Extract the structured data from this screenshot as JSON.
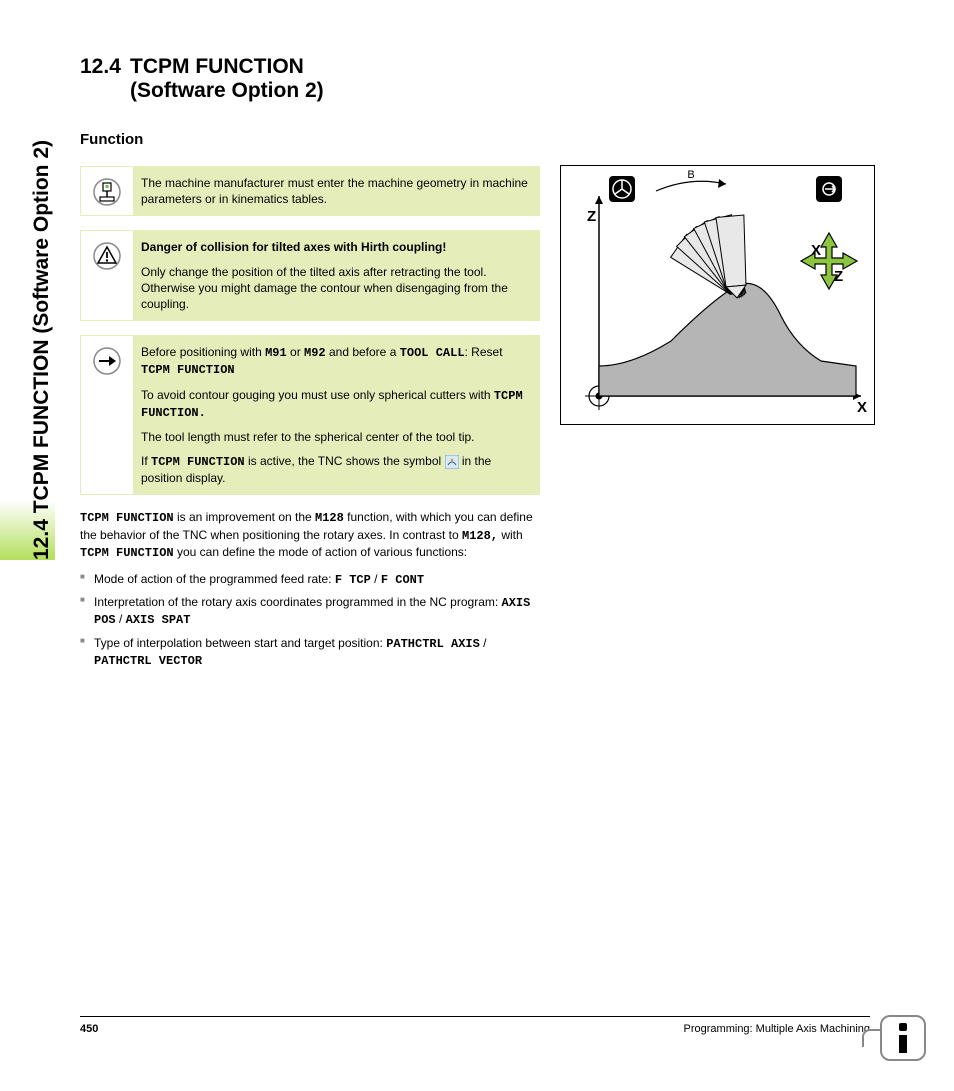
{
  "sidebar_label": "12.4 TCPM FUNCTION (Software Option 2)",
  "section": {
    "number": "12.4",
    "title_line1": "TCPM FUNCTION",
    "title_line2": "(Software Option 2)"
  },
  "subsection_title": "Function",
  "callouts": [
    {
      "icon": "machine",
      "heading": null,
      "paragraphs": [
        {
          "runs": [
            {
              "t": "The machine manufacturer must enter the machine geometry in machine parameters or in kinematics tables."
            }
          ]
        }
      ]
    },
    {
      "icon": "warning",
      "heading": "Danger of collision for tilted axes with Hirth coupling!",
      "paragraphs": [
        {
          "runs": [
            {
              "t": "Only change the position of the tilted axis after retracting the tool. Otherwise you might damage the contour when disengaging from the coupling."
            }
          ]
        }
      ]
    },
    {
      "icon": "arrow",
      "heading": null,
      "paragraphs": [
        {
          "runs": [
            {
              "t": "Before positioning with "
            },
            {
              "t": "M91",
              "mono": true
            },
            {
              "t": " or "
            },
            {
              "t": "M92",
              "mono": true
            },
            {
              "t": " and before a "
            },
            {
              "t": "TOOL CALL",
              "mono": true
            },
            {
              "t": ": Reset "
            },
            {
              "t": "TCPM FUNCTION",
              "mono": true
            }
          ]
        },
        {
          "runs": [
            {
              "t": "To avoid contour gouging you must use only spherical cutters with "
            },
            {
              "t": "TCPM FUNCTION.",
              "mono": true
            }
          ]
        },
        {
          "runs": [
            {
              "t": "The tool length must refer to the spherical center of the tool tip."
            }
          ]
        },
        {
          "runs": [
            {
              "t": "If "
            },
            {
              "t": "TCPM FUNCTION",
              "mono": true
            },
            {
              "t": " is active, the TNC shows the symbol "
            },
            {
              "icon": "tcpm-symbol"
            },
            {
              "t": " in the position display."
            }
          ]
        }
      ]
    }
  ],
  "body": {
    "intro_runs": [
      {
        "t": "TCPM FUNCTION",
        "mono": true
      },
      {
        "t": " is an improvement on the "
      },
      {
        "t": "M128",
        "mono": true
      },
      {
        "t": " function, with which you can define the behavior of the TNC when positioning the rotary axes. In contrast to "
      },
      {
        "t": "M128,",
        "mono": true
      },
      {
        "t": " with "
      },
      {
        "t": "TCPM FUNCTION",
        "mono": true
      },
      {
        "t": " you can define the mode of action of various functions:"
      }
    ],
    "bullets": [
      {
        "runs": [
          {
            "t": "Mode of action of the programmed feed rate: "
          },
          {
            "t": "F TCP",
            "mono": true
          },
          {
            "t": " / "
          },
          {
            "t": "F CONT",
            "mono": true
          }
        ]
      },
      {
        "runs": [
          {
            "t": "Interpretation of the rotary axis coordinates programmed in the NC program: "
          },
          {
            "t": "AXIS POS",
            "mono": true
          },
          {
            "t": " / "
          },
          {
            "t": "AXIS SPAT",
            "mono": true
          }
        ]
      },
      {
        "runs": [
          {
            "t": "Type of interpolation between start and target position: "
          },
          {
            "t": "PATHCTRL AXIS",
            "mono": true
          },
          {
            "t": " / "
          },
          {
            "t": "PATHCTRL VECTOR",
            "mono": true
          }
        ]
      }
    ]
  },
  "diagram": {
    "labels": {
      "b": "B",
      "z_left": "Z",
      "x_right": "X",
      "z_right": "Z",
      "x_bottom": "X"
    },
    "colors": {
      "bg": "#ffffff",
      "axis": "#000000",
      "contour_fill": "#b5b5b5",
      "tool_fill": "#e8e8e8",
      "arrow_green": "#8cc63f",
      "icon_bg": "#000000",
      "icon_fg": "#ffffff"
    }
  },
  "footer": {
    "page_number": "450",
    "chapter": "Programming: Multiple Axis Machining"
  },
  "accent_green": "#b3df5c",
  "callout_bg": "#e5eebb"
}
